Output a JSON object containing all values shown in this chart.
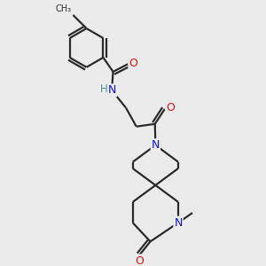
{
  "background_color": "#ebebeb",
  "bond_color": "#2a2a2a",
  "atom_colors": {
    "N": "#1212e0",
    "O": "#e61212",
    "H": "#4a9090",
    "C": "#2a2a2a"
  },
  "figsize": [
    3.0,
    3.0
  ],
  "dpi": 100
}
